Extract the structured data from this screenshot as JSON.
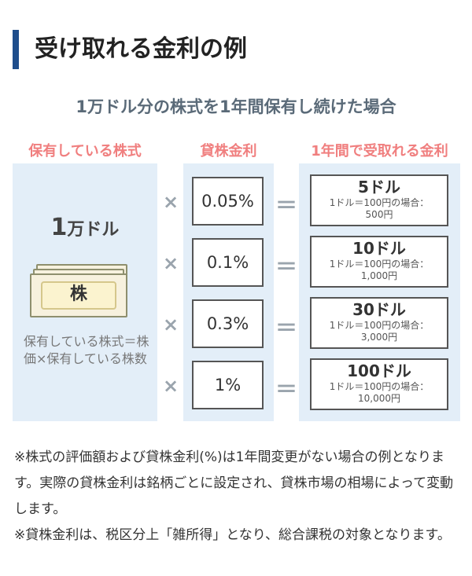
{
  "title": "受け取れる金利の例",
  "subtitle": "1万ドル分の株式を1年間保有し続けた場合",
  "columns": {
    "stock": "保有している株式",
    "rate": "貸株金利",
    "result": "1年間で受取れる金利"
  },
  "stock": {
    "amount_number": "1",
    "amount_unit": "万ドル",
    "bill_label": "株",
    "note": "保有している株式＝株価×保有している株数"
  },
  "operators": {
    "times": "×",
    "equals": "＝"
  },
  "rows": [
    {
      "rate": "0.05%",
      "amount": "5ドル",
      "condition": "1ドル＝100円の場合：",
      "yen": "500円"
    },
    {
      "rate": "0.1%",
      "amount": "10ドル",
      "condition": "1ドル＝100円の場合：",
      "yen": "1,000円"
    },
    {
      "rate": "0.3%",
      "amount": "30ドル",
      "condition": "1ドル＝100円の場合：",
      "yen": "3,000円"
    },
    {
      "rate": "1%",
      "amount": "100ドル",
      "condition": "1ドル＝100円の場合：",
      "yen": "10,000円"
    }
  ],
  "footnotes": [
    "※株式の評価額および貸株金利(%)は1年間変更がない場合の例となります。実際の貸株金利は銘柄ごとに設定され、貸株市場の相場によって変動します。",
    "※貸株金利は、税区分上「雑所得」となり、総合課税の対象となります。"
  ],
  "colors": {
    "accent_bar": "#1f4e8c",
    "column_heading": "#f07f7f",
    "panel_background": "#e3eef8"
  }
}
